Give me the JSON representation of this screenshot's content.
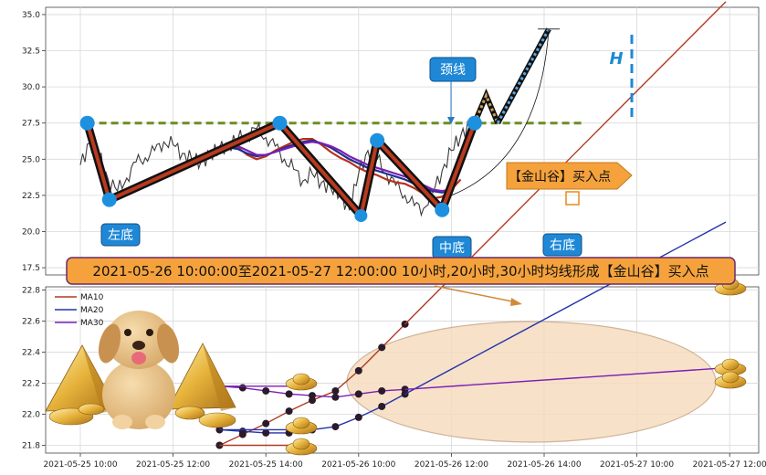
{
  "chart_data": [
    {
      "type": "line",
      "panel": "price",
      "ylim": [
        17,
        35.5
      ],
      "y_ticks": [
        "17.5",
        "20.0",
        "22.5",
        "25.0",
        "27.5",
        "30.0",
        "32.5",
        "35.0"
      ],
      "y_tick_values": [
        17.5,
        20.0,
        22.5,
        25.0,
        27.5,
        30.0,
        32.5,
        35.0
      ],
      "grid": true,
      "neckline": {
        "y": 27.5,
        "color": "#6b8e23"
      },
      "pattern_points": [
        {
          "t": 0.3,
          "y": 27.5
        },
        {
          "t": 1.25,
          "y": 22.2
        },
        {
          "t": 8.6,
          "y": 27.5
        },
        {
          "t": 12.1,
          "y": 21.1
        },
        {
          "t": 12.8,
          "y": 26.3
        },
        {
          "t": 15.6,
          "y": 21.5
        },
        {
          "t": 17.0,
          "y": 27.5
        }
      ],
      "projection": [
        {
          "t": 17.0,
          "y": 27.5
        },
        {
          "t": 17.5,
          "y": 29.4
        },
        {
          "t": 18.0,
          "y": 27.5
        },
        {
          "t": 20.2,
          "y": 34.0
        }
      ],
      "target_level": 34.0,
      "price_close": [
        24.6,
        26.1,
        25.3,
        23.6,
        22.8,
        23.7,
        24.8,
        25.1,
        25.6,
        26.2,
        26.0,
        25.4,
        25.0,
        24.8,
        25.3,
        25.7,
        26.0,
        26.4,
        26.7,
        27.1,
        26.5,
        25.9,
        25.0,
        24.3,
        23.5,
        24.0,
        23.4,
        23.0,
        22.6,
        21.5,
        24.0,
        25.6,
        25.0,
        24.0,
        23.2,
        22.5,
        21.8,
        21.6,
        22.7,
        24.2,
        25.6,
        26.6,
        27.4
      ],
      "price_t0": 0,
      "price_dt": 0.4,
      "ma_series": [
        {
          "key": "MA10",
          "color": "#b8301c",
          "values": [
            25.6,
            25.9,
            25.8,
            25.3,
            25.0,
            25.2,
            25.6,
            25.9,
            26.2,
            26.4,
            26.4,
            26.0,
            25.5,
            25.1,
            24.8,
            24.4,
            24.1,
            23.9,
            23.6,
            23.4,
            23.3,
            23.0,
            22.6,
            22.3,
            22.4,
            22.9,
            23.6
          ],
          "t0": 6.0,
          "dt": 0.4
        },
        {
          "key": "MA20",
          "color": "#1f2f8f",
          "values": [
            25.7,
            25.8,
            25.7,
            25.4,
            25.2,
            25.3,
            25.5,
            25.8,
            26.0,
            26.2,
            26.3,
            26.1,
            25.8,
            25.4,
            25.0,
            24.7,
            24.4,
            24.2,
            24.0,
            23.8,
            23.6,
            23.3,
            23.0,
            22.8,
            22.7,
            22.9
          ],
          "t0": 6.0,
          "dt": 0.4
        },
        {
          "key": "MA30",
          "color": "#7a1fb5",
          "values": [
            25.9,
            26.0,
            25.9,
            25.6,
            25.3,
            25.3,
            25.5,
            25.7,
            25.9,
            26.1,
            26.2,
            26.1,
            25.9,
            25.6,
            25.2,
            24.9,
            24.6,
            24.4,
            24.2,
            24.0,
            23.8,
            23.5,
            23.2,
            22.9,
            22.8,
            22.9
          ],
          "t0": 6.0,
          "dt": 0.4
        }
      ]
    },
    {
      "type": "line",
      "panel": "moving-averages",
      "ylim": [
        21.75,
        22.82
      ],
      "y_ticks": [
        "21.8",
        "22.0",
        "22.2",
        "22.4",
        "22.6",
        "22.8"
      ],
      "y_tick_values": [
        21.8,
        22.0,
        22.2,
        22.4,
        22.6,
        22.8
      ],
      "grid": true,
      "legend_placement": "top-left",
      "series": [
        {
          "name": "MA10",
          "color": "#b03a22",
          "x": [
            6,
            7,
            8,
            9,
            10,
            11,
            12,
            13,
            14
          ],
          "values": [
            21.8,
            21.87,
            21.94,
            22.02,
            22.09,
            22.15,
            22.28,
            22.43,
            22.58
          ]
        },
        {
          "name": "MA20",
          "color": "#2233aa",
          "x": [
            6,
            7,
            8,
            9,
            10,
            11,
            12,
            13,
            14
          ],
          "values": [
            21.9,
            21.89,
            21.88,
            21.88,
            21.9,
            21.92,
            21.98,
            22.05,
            22.13
          ]
        },
        {
          "name": "MA30",
          "color": "#7a1fb5",
          "x": [
            6,
            7,
            8,
            9,
            10,
            11,
            12,
            13,
            14
          ],
          "values": [
            22.18,
            22.17,
            22.15,
            22.13,
            22.12,
            22.11,
            22.13,
            22.15,
            22.16
          ]
        }
      ]
    }
  ],
  "x_axis": {
    "ticks": [
      "2021-05-25 10:00",
      "2021-05-25 12:00",
      "2021-05-25 14:00",
      "2021-05-26 10:00",
      "2021-05-26 12:00",
      "2021-05-26 14:00",
      "2021-05-27 10:00",
      "2021-05-27 12:00"
    ],
    "tick_positions_hours": [
      0,
      4,
      8,
      12,
      16,
      20,
      24,
      28
    ]
  },
  "labels": {
    "neckline": "颈线",
    "left_bottom": "左底",
    "middle_bottom": "中底",
    "right_bottom": "右底",
    "buy_point": "【金山谷】买入点",
    "target": "H",
    "summary": "2021-05-26 10:00:00至2021-05-27 12:00:00 10小时,20小时,30小时均线形成【金山谷】买入点"
  },
  "colors": {
    "callout_bg": "#1e88d6",
    "banner_bg": "#f5a23c",
    "pattern_line": "#111111",
    "pattern_fill": "#b83a1f",
    "pivot": "#1e90e0",
    "ellipse": "#f6dcc0"
  }
}
